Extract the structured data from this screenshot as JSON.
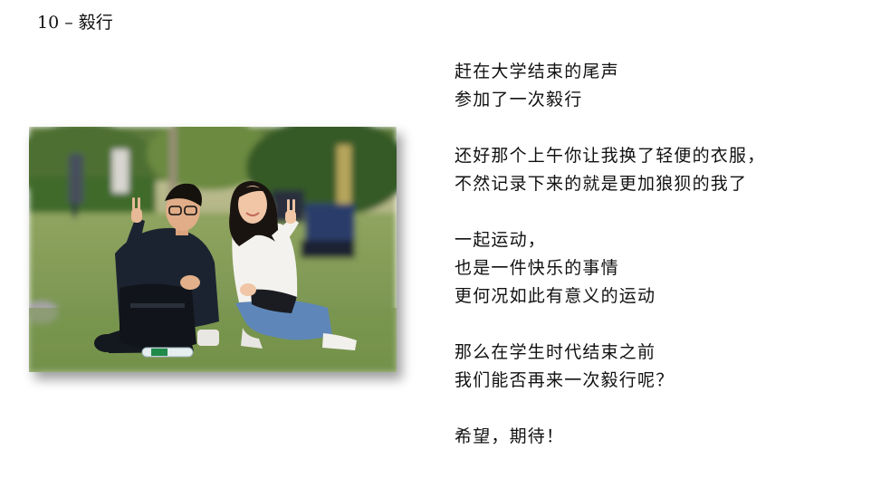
{
  "slide": {
    "title": "10 – 毅行"
  },
  "photo": {
    "alt": "",
    "colors": {
      "grass": "#7e9a55",
      "foliage": "#3f6a2c",
      "jacket": "#1c2330",
      "shirt": "#f4f2ee",
      "jeans": "#5f86b8",
      "hair": "#1a1410"
    }
  },
  "poem": {
    "stanzas": [
      [
        "赶在大学结束的尾声",
        "参加了一次毅行"
      ],
      [
        "还好那个上午你让我换了轻便的衣服，",
        "不然记录下来的就是更加狼狈的我了"
      ],
      [
        "一起运动，",
        "也是一件快乐的事情",
        "更何况如此有意义的运动"
      ],
      [
        "那么在学生时代结束之前",
        "我们能否再来一次毅行呢？"
      ],
      [
        "希望，期待！"
      ]
    ]
  }
}
